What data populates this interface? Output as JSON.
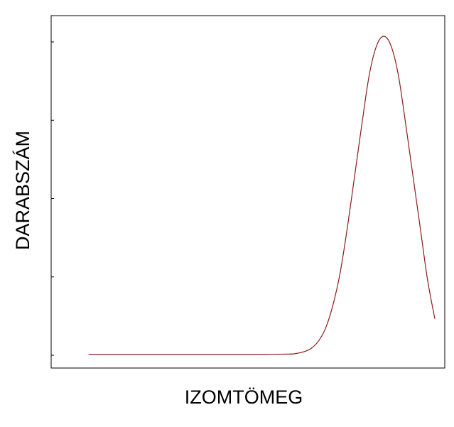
{
  "chart_data": {
    "type": "line",
    "title": "",
    "xlabel": "IZOMTÖMEG",
    "ylabel": "DARABSZÁM",
    "xlim": [
      0,
      100
    ],
    "ylim": [
      0,
      100
    ],
    "grid": false,
    "legend": "none",
    "y_ticks": [
      0,
      25,
      50,
      75,
      100
    ],
    "colors": {
      "line": "#8b1c1c",
      "frame": "#000000",
      "background": "#ffffff"
    },
    "series": [
      {
        "x": [
          5,
          10,
          20,
          30,
          40,
          50,
          60,
          62,
          64,
          66,
          68,
          70,
          72,
          74,
          76,
          78,
          80,
          82,
          84,
          86,
          88,
          90,
          92,
          94,
          96,
          98,
          100
        ],
        "y": [
          2,
          2,
          2,
          2,
          2,
          2,
          2.1,
          2.3,
          2.8,
          3.8,
          6,
          10,
          17,
          27,
          41,
          57,
          73,
          88,
          97,
          100,
          97,
          88,
          73,
          57,
          41,
          25,
          13
        ]
      }
    ]
  }
}
